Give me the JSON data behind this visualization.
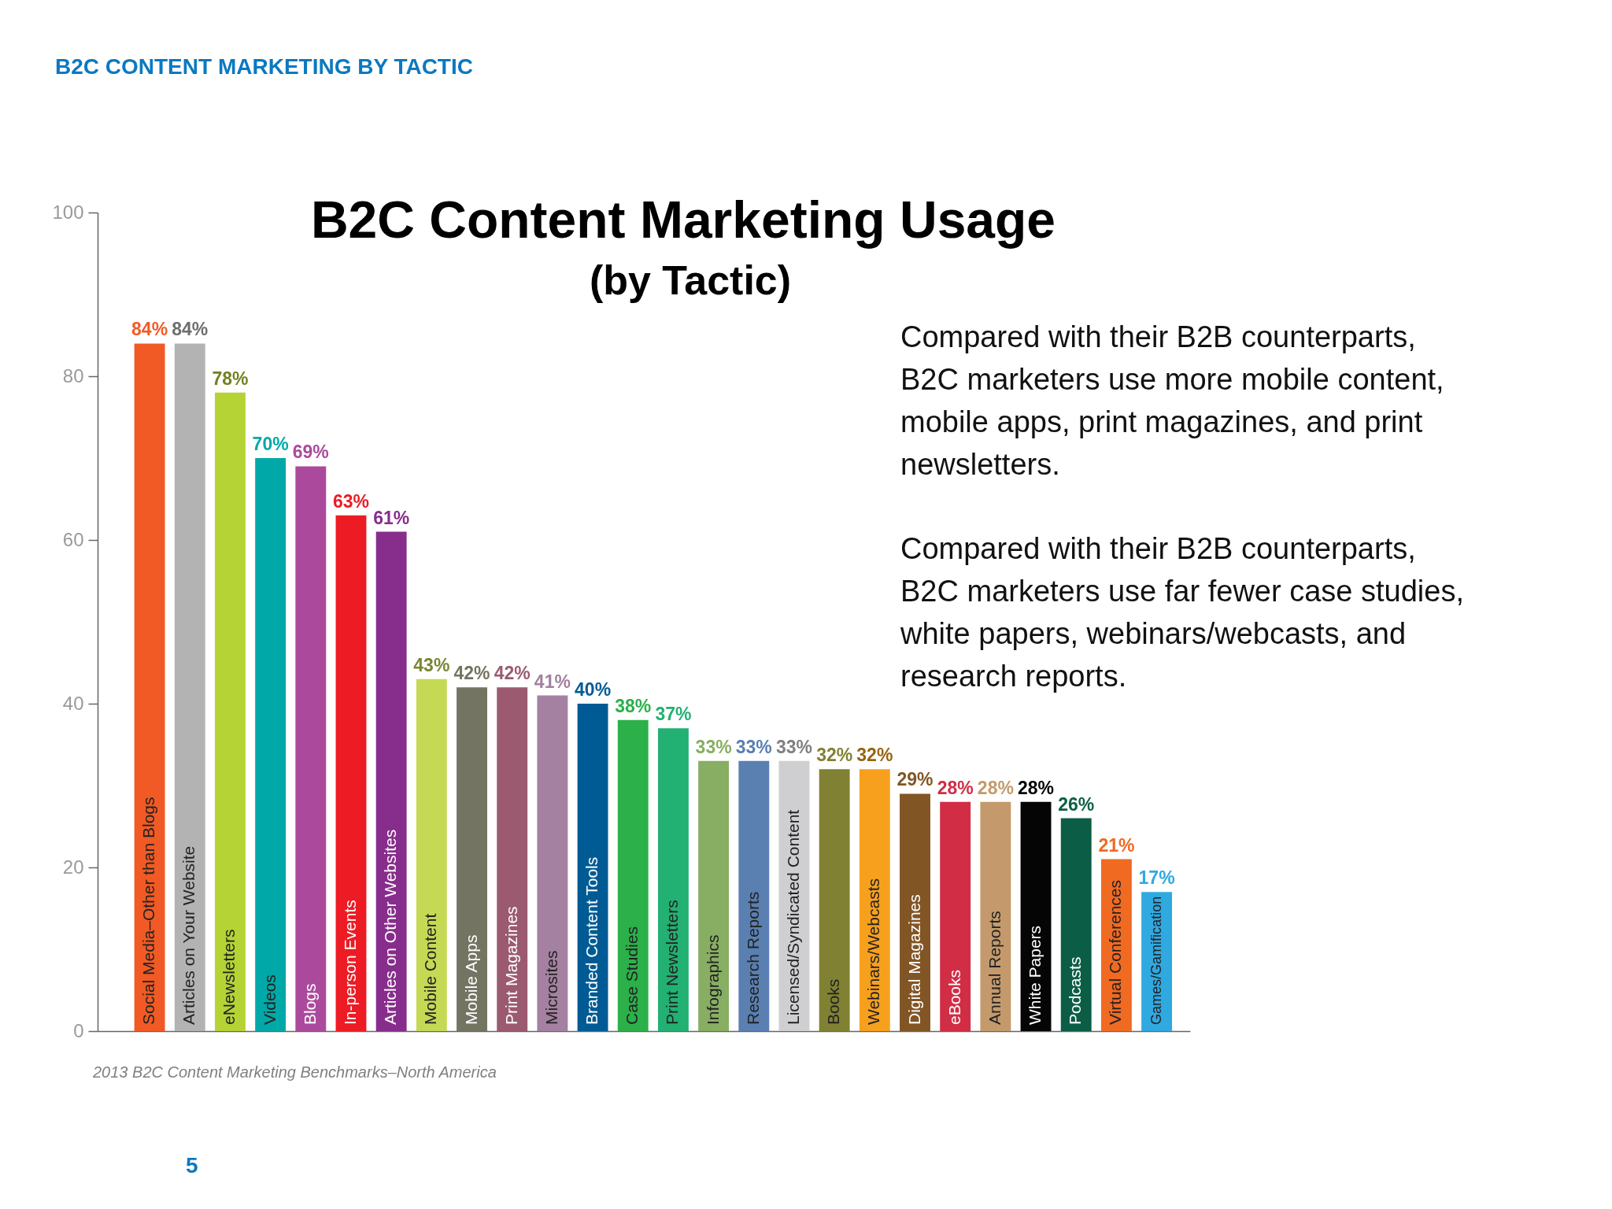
{
  "chart_data": {
    "type": "bar",
    "title": "B2C Content Marketing Usage",
    "subtitle": "(by Tactic)",
    "categories": [
      "Social Media–Other than Blogs",
      "Articles on Your Website",
      "eNewsletters",
      "Videos",
      "Blogs",
      "In-person Events",
      "Articles on Other Websites",
      "Mobile Content",
      "Mobile Apps",
      "Print Magazines",
      "Microsites",
      "Branded Content Tools",
      "Case Studies",
      "Print Newsletters",
      "Infographics",
      "Research Reports",
      "Licensed/Syndicated Content",
      "Books",
      "Webinars/Webcasts",
      "Digital Magazines",
      "eBooks",
      "Annual Reports",
      "White Papers",
      "Podcasts",
      "Virtual Conferences",
      "Games/Gamification"
    ],
    "values": [
      84,
      84,
      78,
      70,
      69,
      63,
      61,
      43,
      42,
      42,
      41,
      40,
      38,
      37,
      33,
      33,
      33,
      32,
      32,
      29,
      28,
      28,
      28,
      26,
      21,
      17
    ],
    "colors": [
      "#f15a24",
      "#b3b3b3",
      "#b5d334",
      "#00a9a8",
      "#ab4a9c",
      "#ed1c24",
      "#872d8c",
      "#c5d955",
      "#737461",
      "#9b5a70",
      "#a481a0",
      "#005b94",
      "#2bb04a",
      "#22b173",
      "#87ae62",
      "#5a7fb1",
      "#cfcfd1",
      "#818133",
      "#f7a01d",
      "#825524",
      "#d12d45",
      "#c49a6c",
      "#050505",
      "#0b5e45",
      "#f06a22",
      "#30a8e0"
    ],
    "value_labels": [
      "84%",
      "84%",
      "78%",
      "70%",
      "69%",
      "63%",
      "61%",
      "43%",
      "42%",
      "42%",
      "41%",
      "40%",
      "38%",
      "37%",
      "33%",
      "33%",
      "33%",
      "32%",
      "32%",
      "29%",
      "28%",
      "28%",
      "28%",
      "26%",
      "21%",
      "17%"
    ],
    "ylim": [
      0,
      100
    ],
    "yticks": [
      0,
      20,
      40,
      60,
      80,
      100
    ],
    "grid": false,
    "annotations": [
      "B2C CONTENT MARKETING BY TACTIC",
      "Compared with their B2B counterparts,\nB2C marketers use more mobile content,\nmobile apps, print magazines, and print\nnewsletters.",
      "Compared with their B2B counterparts,\nB2C marketers use far fewer case studies,\nwhite papers, webinars/webcasts, and\nresearch reports.",
      "2013 B2C Content Marketing Benchmarks–North America",
      "5"
    ]
  }
}
